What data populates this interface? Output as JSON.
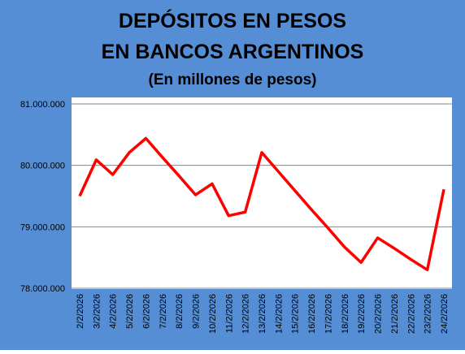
{
  "chart_data": {
    "type": "line",
    "title": [
      "DEPÓSITOS EN PESOS",
      "EN BANCOS ARGENTINOS"
    ],
    "subtitle": "(En millones de pesos)",
    "categories": [
      "2/2/2026",
      "3/2/2026",
      "4/2/2026",
      "5/2/2026",
      "6/2/2026",
      "7/2/2026",
      "8/2/2026",
      "9/2/2026",
      "10/2/2026",
      "11/2/2026",
      "12/2/2026",
      "13/2/2026",
      "14/2/2026",
      "15/2/2026",
      "16/2/2026",
      "17/2/2026",
      "18/2/2026",
      "19/2/2026",
      "20/2/2026",
      "21/2/2026",
      "22/2/2026",
      "23/2/2026",
      "24/2/2026"
    ],
    "values": [
      79500000,
      80090000,
      79850000,
      80210000,
      80440000,
      80130000,
      79830000,
      79520000,
      79700000,
      79180000,
      79240000,
      80210000,
      79900000,
      79590000,
      79280000,
      78980000,
      78670000,
      78420000,
      78820000,
      78650000,
      78470000,
      78300000,
      79610000
    ],
    "color": "#ff0000",
    "ylim": [
      78000000,
      81000000
    ],
    "yticks": [
      {
        "value": 78000000,
        "label": "78.000.000"
      },
      {
        "value": 79000000,
        "label": "79.000.000"
      },
      {
        "value": 80000000,
        "label": "80.000.000"
      },
      {
        "value": 81000000,
        "label": "81.000.000"
      }
    ],
    "grid": true
  }
}
